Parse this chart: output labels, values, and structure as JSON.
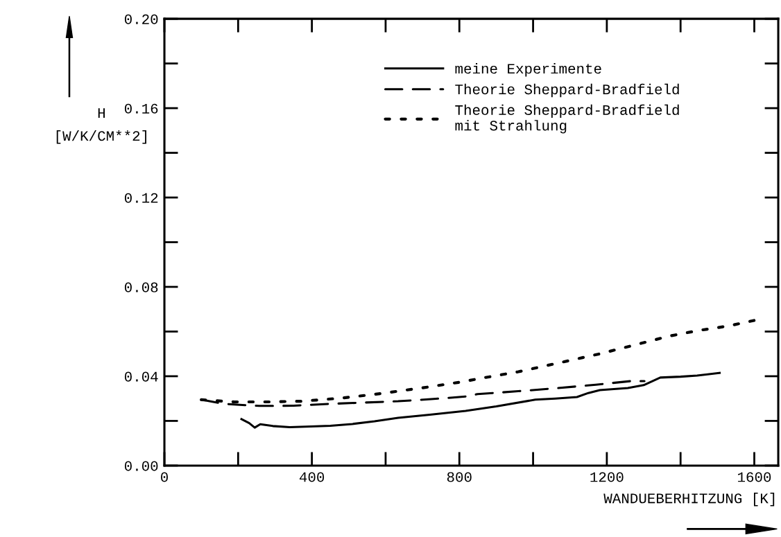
{
  "chart_data": {
    "type": "line",
    "xlabel": "WANDUEBERHITZUNG [K]",
    "ylabel": "H\n[W/K/CM**2]",
    "xlim": [
      0,
      1665
    ],
    "ylim": [
      0,
      0.2
    ],
    "xticks": [
      0,
      400,
      800,
      1200,
      1600
    ],
    "yticks": [
      {
        "value": 0,
        "label": "0.00"
      },
      {
        "value": 0.04,
        "label": "0.04"
      },
      {
        "value": 0.08,
        "label": "0.08"
      },
      {
        "value": 0.12,
        "label": "0.12"
      },
      {
        "value": 0.16,
        "label": "0.16"
      },
      {
        "value": 0.2,
        "label": "0.20"
      }
    ],
    "grid": false,
    "legend": "top",
    "marker": "none",
    "series": [
      {
        "name": "meine Experimente",
        "color": "#000000",
        "line_style": "solid",
        "x": [
          209,
          230,
          245,
          260,
          294,
          340,
          383,
          450,
          509,
          570,
          634,
          720,
          817,
          900,
          1006,
          1060,
          1119,
          1150,
          1181,
          1257,
          1300,
          1345,
          1400,
          1445,
          1506
        ],
        "values": [
          0.0208,
          0.019,
          0.017,
          0.0185,
          0.0177,
          0.0172,
          0.0174,
          0.0178,
          0.0186,
          0.0198,
          0.0214,
          0.0228,
          0.0245,
          0.0265,
          0.0295,
          0.03,
          0.0307,
          0.0325,
          0.0338,
          0.0347,
          0.036,
          0.0394,
          0.0398,
          0.0403,
          0.0415
        ]
      },
      {
        "name": "Theorie Sheppard-Bradfield",
        "color": "#000000",
        "line_style": "dashed",
        "x": [
          100,
          162,
          257,
          350,
          445,
          540,
          634,
          730,
          823,
          849,
          960,
          1068,
          1170,
          1264,
          1302
        ],
        "values": [
          0.0295,
          0.0276,
          0.0267,
          0.0268,
          0.0276,
          0.0282,
          0.0288,
          0.0298,
          0.031,
          0.032,
          0.0333,
          0.0347,
          0.0362,
          0.0378,
          0.0378
        ]
      },
      {
        "name": "Theorie Sheppard-Bradfield\nmit Strahlung",
        "color": "#000000",
        "line_style": "dotted",
        "x": [
          100,
          189,
          280,
          370,
          480,
          585,
          700,
          808,
          849,
          960,
          1068,
          1180,
          1283,
          1370,
          1450,
          1530,
          1600
        ],
        "values": [
          0.0295,
          0.0285,
          0.0285,
          0.0288,
          0.0302,
          0.0322,
          0.0348,
          0.0375,
          0.0388,
          0.042,
          0.0459,
          0.05,
          0.0543,
          0.058,
          0.0605,
          0.0625,
          0.065
        ]
      }
    ]
  }
}
